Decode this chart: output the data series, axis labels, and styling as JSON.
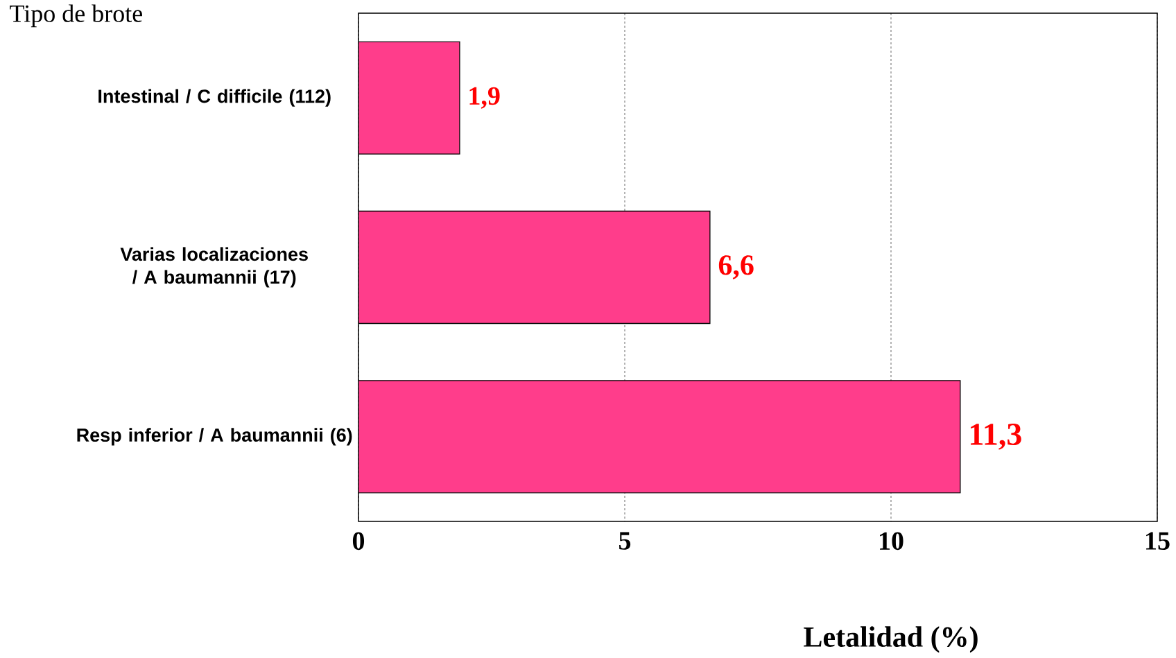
{
  "chart_data": {
    "type": "bar",
    "orientation": "horizontal",
    "ylabel": "Tipo de brote",
    "xlabel": "Letalidad (%)",
    "categories": [
      "Intestinal / C difficile (112)",
      "Varias localizaciones / A baumannii (17)",
      "Resp inferior / A baumannii (6)"
    ],
    "values": [
      1.9,
      6.6,
      11.3
    ],
    "value_labels": [
      "1,9",
      "6,6",
      "11,3"
    ],
    "color": "#ff3d8b",
    "xlim": [
      0,
      15
    ],
    "xticks": [
      0,
      5,
      10,
      15
    ],
    "grid": "x"
  }
}
